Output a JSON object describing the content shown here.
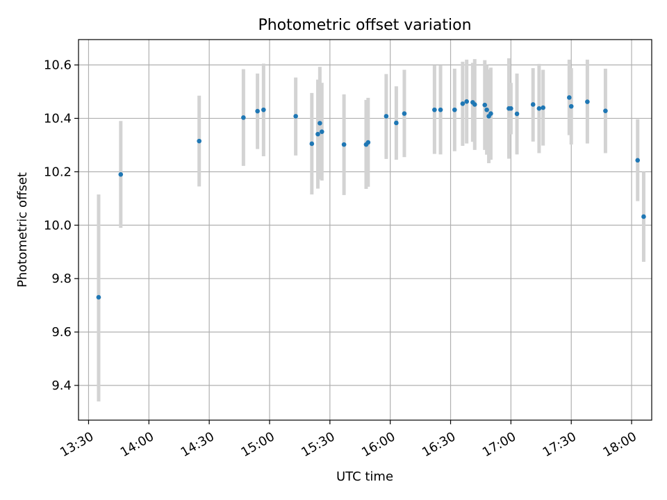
{
  "chart_data": {
    "type": "scatter",
    "title": "Photometric offset variation",
    "xlabel": "UTC time",
    "ylabel": "Photometric offset",
    "xlim": [
      "13:25",
      "18:10"
    ],
    "ylim": [
      9.27,
      10.695
    ],
    "x_ticks": [
      "13:30",
      "14:00",
      "14:30",
      "15:00",
      "15:30",
      "16:00",
      "16:30",
      "17:00",
      "17:30",
      "18:00"
    ],
    "y_ticks": [
      9.4,
      9.6,
      9.8,
      10.0,
      10.2,
      10.4,
      10.6
    ],
    "y_tick_labels": [
      "9.4",
      "9.6",
      "9.8",
      "10.0",
      "10.2",
      "10.4",
      "10.6"
    ],
    "grid": true,
    "marker_color": "#1f77b4",
    "errorbar_color": "#d3d3d3",
    "points": [
      {
        "t": "13:35",
        "y": 9.73,
        "lo": 9.34,
        "hi": 10.115
      },
      {
        "t": "13:46",
        "y": 10.19,
        "lo": 9.99,
        "hi": 10.39
      },
      {
        "t": "14:25",
        "y": 10.315,
        "lo": 10.145,
        "hi": 10.485
      },
      {
        "t": "14:47",
        "y": 10.403,
        "lo": 10.222,
        "hi": 10.584
      },
      {
        "t": "14:54",
        "y": 10.427,
        "lo": 10.285,
        "hi": 10.568
      },
      {
        "t": "14:57",
        "y": 10.432,
        "lo": 10.258,
        "hi": 10.605
      },
      {
        "t": "15:13",
        "y": 10.408,
        "lo": 10.261,
        "hi": 10.553
      },
      {
        "t": "15:21",
        "y": 10.305,
        "lo": 10.115,
        "hi": 10.495
      },
      {
        "t": "15:24",
        "y": 10.341,
        "lo": 10.137,
        "hi": 10.545
      },
      {
        "t": "15:25",
        "y": 10.382,
        "lo": 10.172,
        "hi": 10.593
      },
      {
        "t": "15:26",
        "y": 10.35,
        "lo": 10.167,
        "hi": 10.533
      },
      {
        "t": "15:37",
        "y": 10.302,
        "lo": 10.113,
        "hi": 10.49
      },
      {
        "t": "15:48",
        "y": 10.302,
        "lo": 10.136,
        "hi": 10.469
      },
      {
        "t": "15:49",
        "y": 10.31,
        "lo": 10.144,
        "hi": 10.477
      },
      {
        "t": "15:58",
        "y": 10.408,
        "lo": 10.248,
        "hi": 10.566
      },
      {
        "t": "16:03",
        "y": 10.383,
        "lo": 10.245,
        "hi": 10.52
      },
      {
        "t": "16:07",
        "y": 10.418,
        "lo": 10.255,
        "hi": 10.582
      },
      {
        "t": "16:22",
        "y": 10.432,
        "lo": 10.267,
        "hi": 10.598
      },
      {
        "t": "16:25",
        "y": 10.432,
        "lo": 10.265,
        "hi": 10.598
      },
      {
        "t": "16:32",
        "y": 10.432,
        "lo": 10.277,
        "hi": 10.586
      },
      {
        "t": "16:36",
        "y": 10.455,
        "lo": 10.297,
        "hi": 10.612
      },
      {
        "t": "16:38",
        "y": 10.463,
        "lo": 10.306,
        "hi": 10.62
      },
      {
        "t": "16:41",
        "y": 10.46,
        "lo": 10.312,
        "hi": 10.608
      },
      {
        "t": "16:42",
        "y": 10.452,
        "lo": 10.282,
        "hi": 10.622
      },
      {
        "t": "16:47",
        "y": 10.45,
        "lo": 10.282,
        "hi": 10.618
      },
      {
        "t": "16:48",
        "y": 10.432,
        "lo": 10.264,
        "hi": 10.6
      },
      {
        "t": "16:49",
        "y": 10.408,
        "lo": 10.232,
        "hi": 10.583
      },
      {
        "t": "16:50",
        "y": 10.418,
        "lo": 10.245,
        "hi": 10.59
      },
      {
        "t": "16:59",
        "y": 10.437,
        "lo": 10.249,
        "hi": 10.625
      },
      {
        "t": "17:00",
        "y": 10.437,
        "lo": 10.34,
        "hi": 10.533
      },
      {
        "t": "17:03",
        "y": 10.417,
        "lo": 10.265,
        "hi": 10.568
      },
      {
        "t": "17:11",
        "y": 10.452,
        "lo": 10.313,
        "hi": 10.588
      },
      {
        "t": "17:14",
        "y": 10.437,
        "lo": 10.27,
        "hi": 10.604
      },
      {
        "t": "17:16",
        "y": 10.44,
        "lo": 10.298,
        "hi": 10.582
      },
      {
        "t": "17:29",
        "y": 10.478,
        "lo": 10.337,
        "hi": 10.62
      },
      {
        "t": "17:30",
        "y": 10.445,
        "lo": 10.302,
        "hi": 10.588
      },
      {
        "t": "17:38",
        "y": 10.462,
        "lo": 10.306,
        "hi": 10.62
      },
      {
        "t": "17:47",
        "y": 10.428,
        "lo": 10.27,
        "hi": 10.586
      },
      {
        "t": "18:03",
        "y": 10.243,
        "lo": 10.09,
        "hi": 10.397
      },
      {
        "t": "18:06",
        "y": 10.032,
        "lo": 9.863,
        "hi": 10.2
      }
    ]
  }
}
